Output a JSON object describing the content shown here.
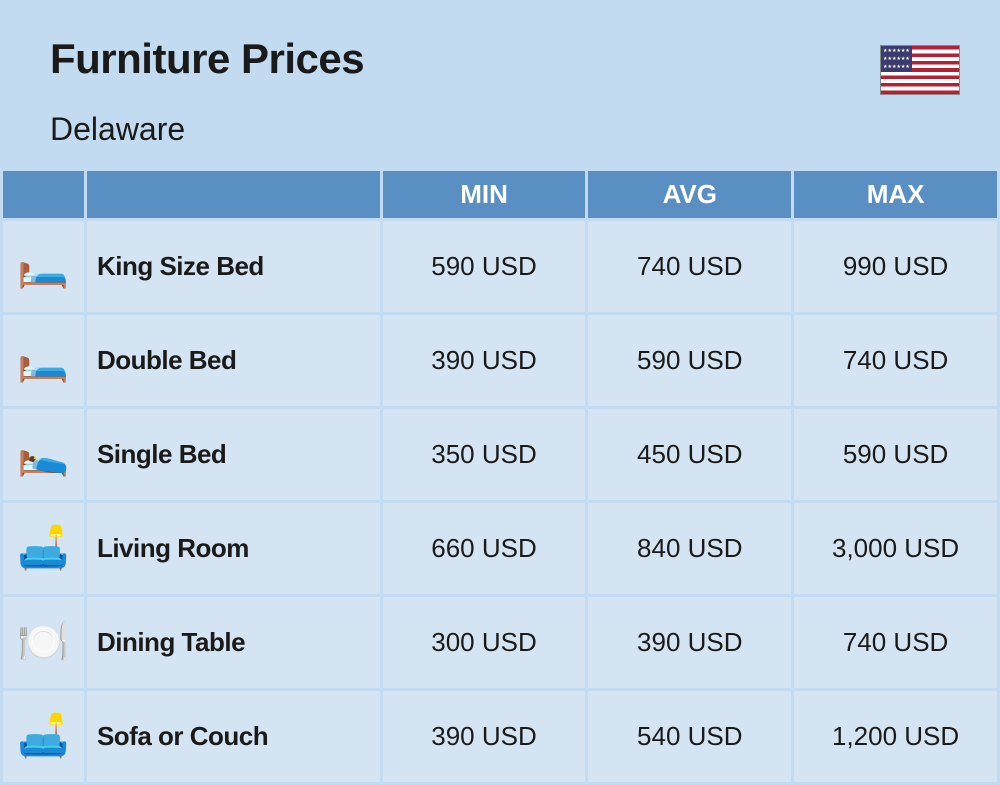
{
  "background_color": "#c3dbf0",
  "header": {
    "title": "Furniture Prices",
    "subtitle": "Delaware",
    "flag": "us-flag"
  },
  "table": {
    "header_bg": "#5a8fc4",
    "header_fg": "#ffffff",
    "cell_bg": "#d5e4f2",
    "border_color": "#c3dbf0",
    "columns": {
      "min": "MIN",
      "avg": "AVG",
      "max": "MAX"
    },
    "rows": [
      {
        "icon": "🛏️",
        "name": "King Size Bed",
        "min": "590 USD",
        "avg": "740 USD",
        "max": "990 USD"
      },
      {
        "icon": "🛏️",
        "name": "Double Bed",
        "min": "390 USD",
        "avg": "590 USD",
        "max": "740 USD"
      },
      {
        "icon": "🛌",
        "name": "Single Bed",
        "min": "350 USD",
        "avg": "450 USD",
        "max": "590 USD"
      },
      {
        "icon": "🛋️",
        "name": "Living Room",
        "min": "660 USD",
        "avg": "840 USD",
        "max": "3,000 USD"
      },
      {
        "icon": "🍽️",
        "name": "Dining Table",
        "min": "300 USD",
        "avg": "390 USD",
        "max": "740 USD"
      },
      {
        "icon": "🛋️",
        "name": "Sofa or Couch",
        "min": "390 USD",
        "avg": "540 USD",
        "max": "1,200 USD"
      }
    ]
  }
}
